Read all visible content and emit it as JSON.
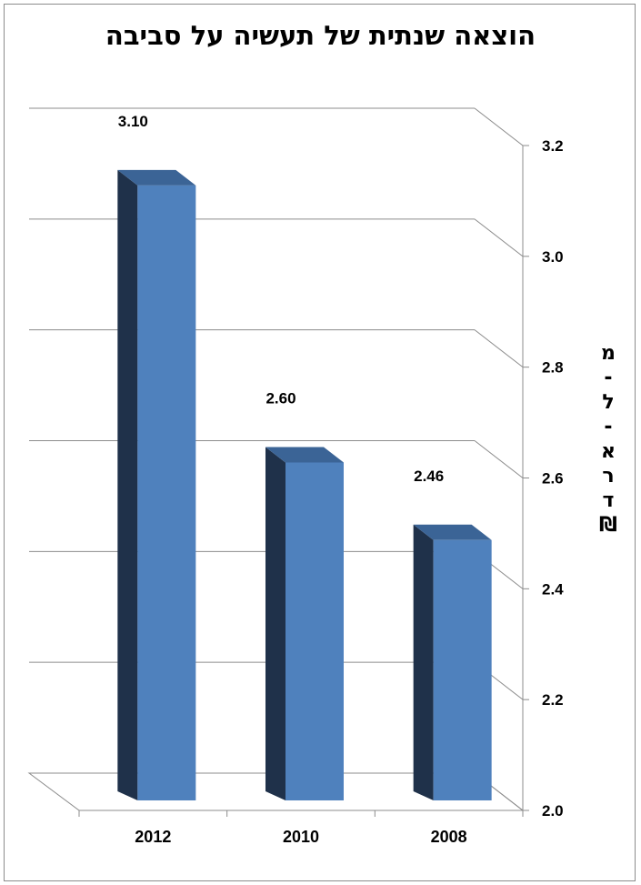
{
  "chart_data": {
    "type": "bar",
    "title": "הוצאה שנתית של תעשיה על סביבה",
    "ylabel": "מיליארד ₪",
    "ylabel_lines": [
      "מ",
      "-",
      "ל",
      "-",
      "א",
      "ר",
      "ד",
      "₪"
    ],
    "categories": [
      "2012",
      "2010",
      "2008"
    ],
    "values": [
      3.1,
      2.6,
      2.46
    ],
    "value_labels": [
      "3.10",
      "2.60",
      "2.46"
    ],
    "yticks": [
      "2.0",
      "2.2",
      "2.4",
      "2.6",
      "2.8",
      "3.0",
      "3.2"
    ],
    "ylim": [
      2.0,
      3.2
    ],
    "yaxis_position": "right",
    "grid": true,
    "colors": {
      "bar_front": "#4f81bd",
      "bar_side": "#1f314a",
      "bar_top": "#3b6496",
      "grid": "#8c8c8c"
    }
  }
}
